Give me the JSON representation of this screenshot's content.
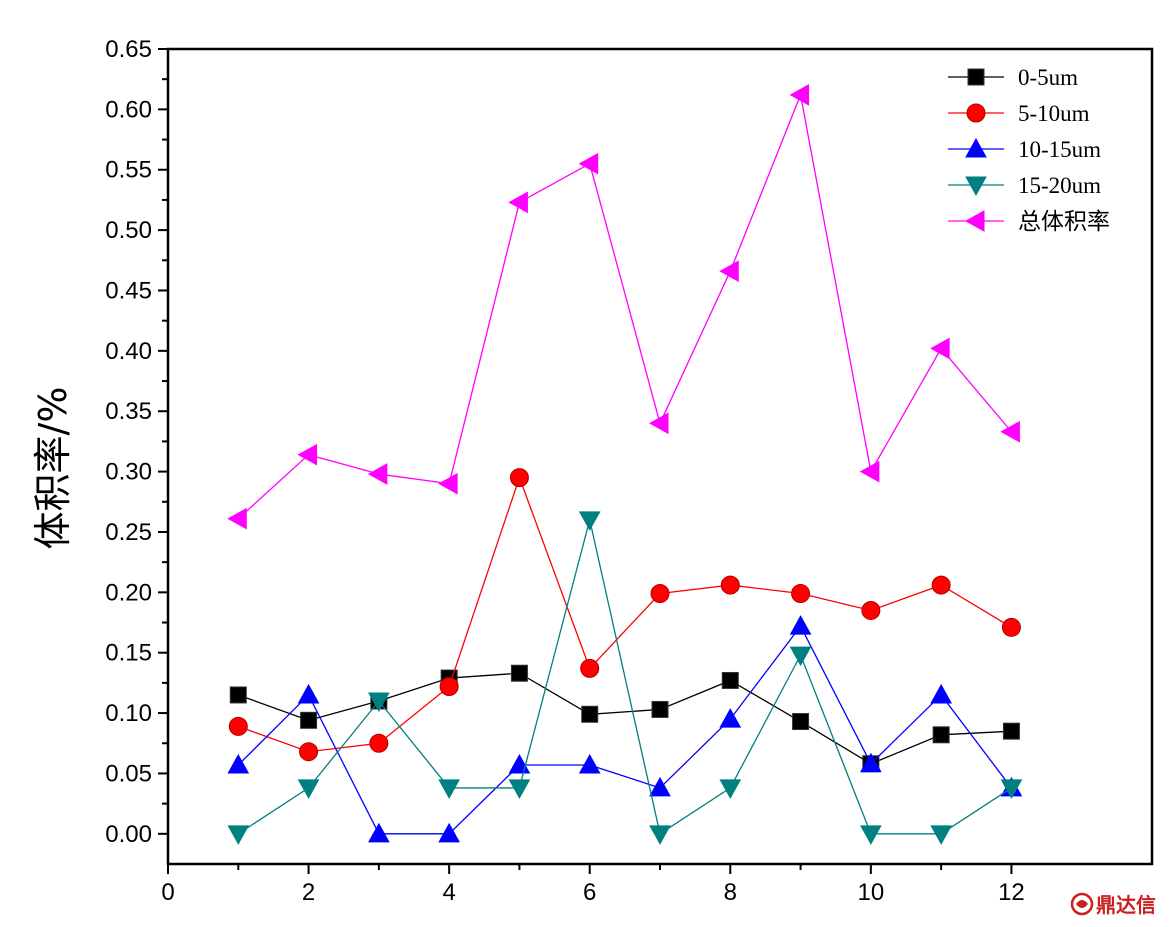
{
  "chart_data": {
    "type": "line",
    "title": "",
    "xlabel": "",
    "ylabel": "体积率/%",
    "xlim": [
      0,
      14
    ],
    "ylim": [
      -0.025,
      0.65
    ],
    "x_ticks": [
      0,
      2,
      4,
      6,
      8,
      10,
      12
    ],
    "x_tick_labels": [
      "0",
      "2",
      "4",
      "6",
      "8",
      "10",
      "12"
    ],
    "y_ticks": [
      0.0,
      0.05,
      0.1,
      0.15,
      0.2,
      0.25,
      0.3,
      0.35,
      0.4,
      0.45,
      0.5,
      0.55,
      0.6,
      0.65
    ],
    "y_tick_labels": [
      "0.00",
      "0.05",
      "0.10",
      "0.15",
      "0.20",
      "0.25",
      "0.30",
      "0.35",
      "0.40",
      "0.45",
      "0.50",
      "0.55",
      "0.60",
      "0.65"
    ],
    "grid": false,
    "legend_position": "top-right",
    "x": [
      1,
      2,
      3,
      4,
      5,
      6,
      7,
      8,
      9,
      10,
      11,
      12
    ],
    "series": [
      {
        "name": "0-5um",
        "color": "#000000",
        "marker": "square",
        "values": [
          0.115,
          0.094,
          0.11,
          0.129,
          0.133,
          0.099,
          0.103,
          0.127,
          0.093,
          0.058,
          0.082,
          0.085
        ]
      },
      {
        "name": "5-10um",
        "color": "#ff0000",
        "marker": "circle",
        "values": [
          0.089,
          0.068,
          0.075,
          0.122,
          0.295,
          0.137,
          0.199,
          0.206,
          0.199,
          0.185,
          0.206,
          0.171
        ]
      },
      {
        "name": "10-15um",
        "color": "#0000ff",
        "marker": "triangle-up",
        "values": [
          0.057,
          0.115,
          0.0,
          0.0,
          0.057,
          0.057,
          0.038,
          0.095,
          0.172,
          0.058,
          0.115,
          0.038
        ]
      },
      {
        "name": "15-20um",
        "color": "#008080",
        "marker": "triangle-down",
        "values": [
          0.0,
          0.038,
          0.11,
          0.038,
          0.038,
          0.26,
          0.0,
          0.038,
          0.148,
          0.0,
          0.0,
          0.038
        ]
      },
      {
        "name": "总体积率",
        "color": "#ff00ff",
        "marker": "triangle-left",
        "values": [
          0.261,
          0.314,
          0.298,
          0.29,
          0.523,
          0.555,
          0.34,
          0.466,
          0.612,
          0.3,
          0.402,
          0.333
        ]
      }
    ]
  },
  "watermark": {
    "text": "鼎达信",
    "color": "#cc1f1f"
  }
}
